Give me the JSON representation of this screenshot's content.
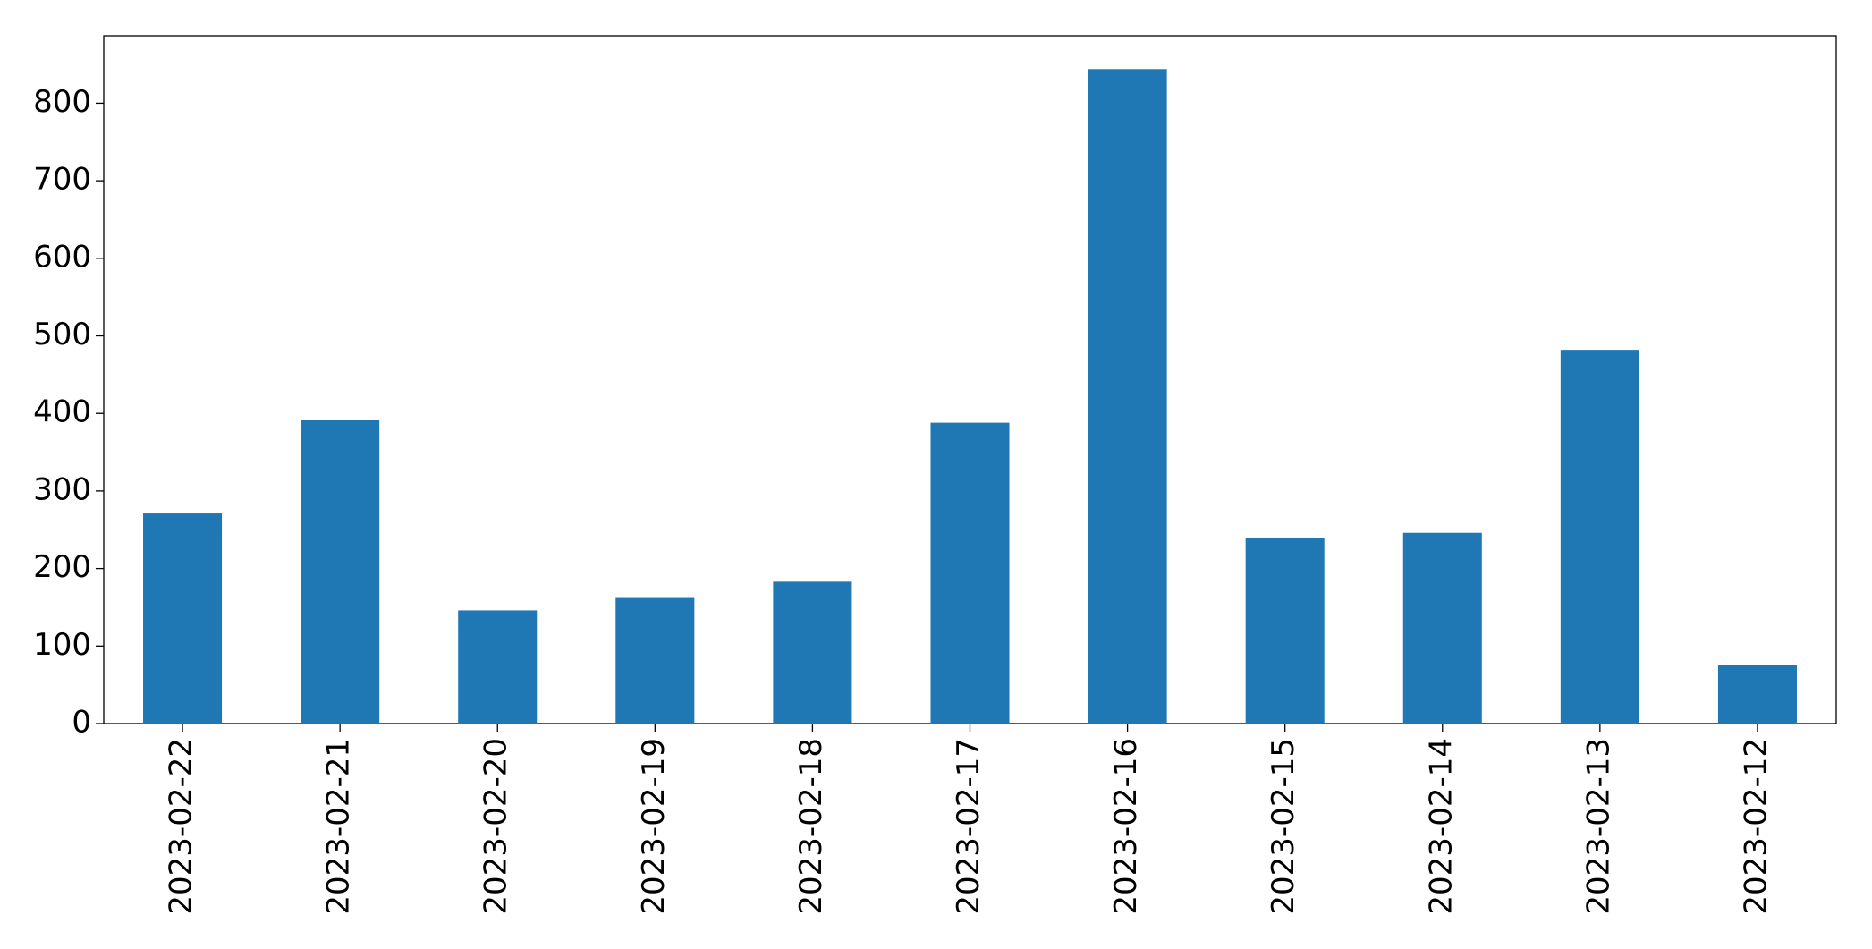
{
  "chart_data": {
    "type": "bar",
    "categories": [
      "2023-02-22",
      "2023-02-21",
      "2023-02-20",
      "2023-02-19",
      "2023-02-18",
      "2023-02-17",
      "2023-02-16",
      "2023-02-15",
      "2023-02-14",
      "2023-02-13",
      "2023-02-12"
    ],
    "values": [
      271,
      391,
      146,
      162,
      183,
      388,
      844,
      239,
      246,
      482,
      75
    ],
    "color": "#1f77b4",
    "ylim": [
      0,
      887
    ],
    "yticks": [
      0,
      100,
      200,
      300,
      400,
      500,
      600,
      700,
      800
    ],
    "grid": false
  }
}
